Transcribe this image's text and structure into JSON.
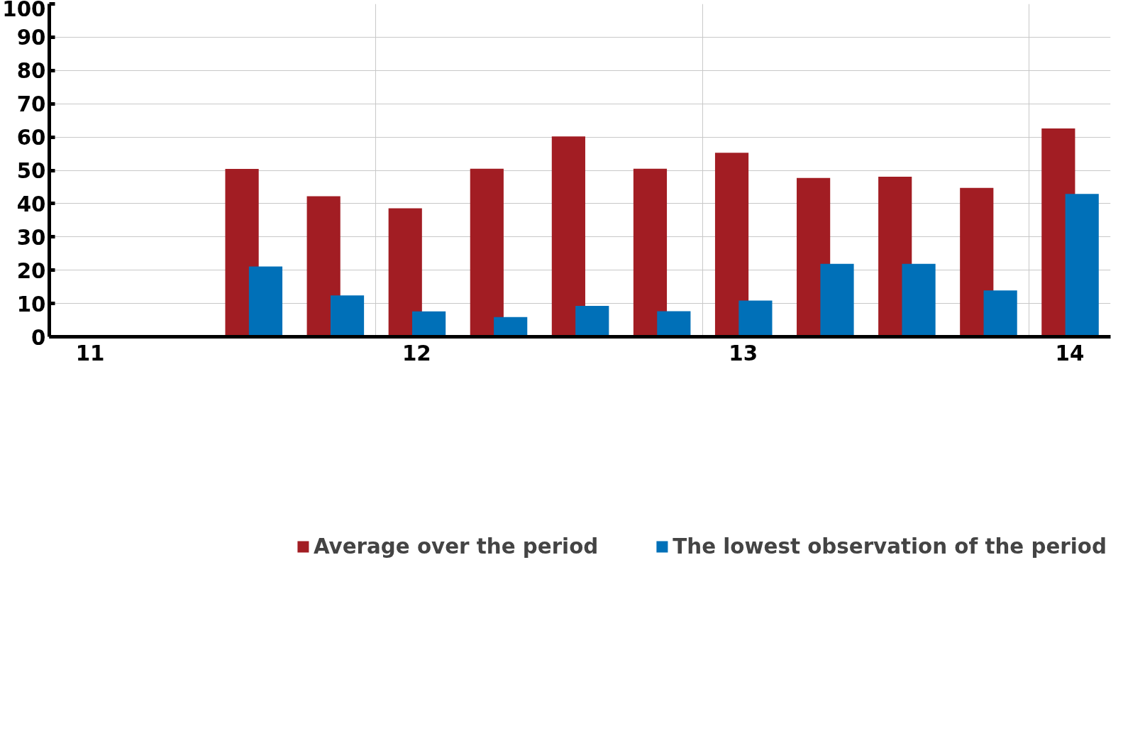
{
  "chart_data": {
    "type": "bar",
    "categories": [
      "11",
      null,
      null,
      null,
      "12",
      null,
      null,
      null,
      "13",
      null,
      null,
      null,
      "14"
    ],
    "series": [
      {
        "name": "Average over the period",
        "color": "#a21d23",
        "values": [
          null,
          null,
          50.4,
          42.2,
          38.6,
          50.5,
          60.2,
          50.5,
          55.3,
          47.7,
          48.1,
          44.7,
          62.6
        ]
      },
      {
        "name": "The lowest observation of the period",
        "color": "#0070b8",
        "values": [
          null,
          null,
          21.1,
          12.4,
          7.6,
          5.9,
          9.3,
          7.7,
          10.9,
          21.9,
          21.9,
          13.9,
          42.9
        ]
      }
    ],
    "ylim": [
      0,
      100
    ],
    "yticks": [
      0,
      10,
      20,
      30,
      40,
      50,
      60,
      70,
      80,
      90,
      100
    ],
    "grid": true,
    "legend": "bottom"
  }
}
